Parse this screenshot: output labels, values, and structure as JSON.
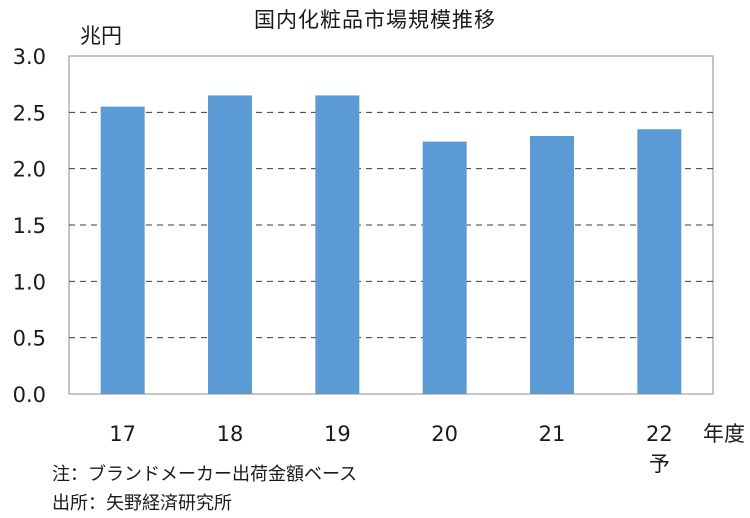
{
  "chart_data": {
    "type": "bar",
    "title": "国内化粧品市場規模推移",
    "ylabel": "兆円",
    "xlabel": "年度",
    "categories": [
      "17",
      "18",
      "19",
      "20",
      "21",
      "22"
    ],
    "category_sublabels": [
      "",
      "",
      "",
      "",
      "",
      "予"
    ],
    "values": [
      2.55,
      2.65,
      2.65,
      2.24,
      2.29,
      2.35
    ],
    "yticks": [
      "0.0",
      "0.5",
      "1.0",
      "1.5",
      "2.0",
      "2.5",
      "3.0"
    ],
    "ylim": [
      0,
      3.0
    ],
    "grid": "dashed horizontal",
    "bar_color": "#5b9bd5"
  },
  "notes": {
    "note": "注：ブランドメーカー出荷金額ベース",
    "source": "出所：矢野経済研究所"
  }
}
